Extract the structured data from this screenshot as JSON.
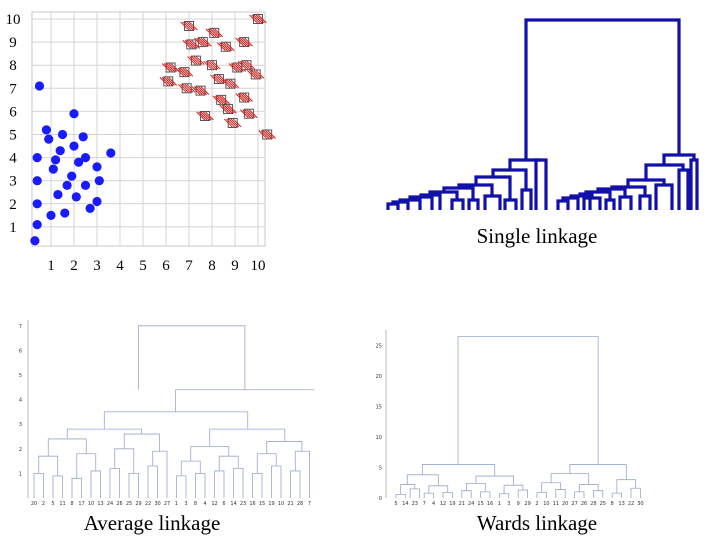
{
  "chart_data": [
    {
      "type": "scatter",
      "xticks": [
        "1",
        "2",
        "3",
        "4",
        "5",
        "6",
        "7",
        "8",
        "9",
        "10"
      ],
      "yticks": [
        "1",
        "2",
        "3",
        "4",
        "5",
        "6",
        "7",
        "8",
        "9",
        "10"
      ],
      "xlim": [
        0,
        10.5
      ],
      "ylim": [
        0,
        10
      ],
      "grid": true,
      "series": [
        {
          "marker": "filled-circle",
          "color": "#1a1aff",
          "points": [
            [
              0.3,
              0.4
            ],
            [
              0.4,
              1.1
            ],
            [
              0.4,
              2.0
            ],
            [
              0.4,
              3.0
            ],
            [
              0.4,
              4.0
            ],
            [
              0.5,
              7.1
            ],
            [
              0.8,
              5.2
            ],
            [
              0.9,
              4.8
            ],
            [
              1.1,
              3.5
            ],
            [
              1.0,
              1.5
            ],
            [
              1.2,
              3.9
            ],
            [
              1.3,
              2.4
            ],
            [
              1.4,
              4.3
            ],
            [
              1.5,
              5.0
            ],
            [
              1.6,
              1.6
            ],
            [
              1.7,
              2.8
            ],
            [
              1.9,
              3.2
            ],
            [
              2.0,
              4.5
            ],
            [
              2.0,
              5.9
            ],
            [
              2.1,
              2.3
            ],
            [
              2.2,
              3.8
            ],
            [
              2.4,
              4.9
            ],
            [
              2.5,
              4.0
            ],
            [
              2.5,
              2.8
            ],
            [
              2.7,
              1.8
            ],
            [
              3.0,
              3.6
            ],
            [
              3.0,
              2.1
            ],
            [
              3.1,
              3.0
            ],
            [
              3.6,
              4.2
            ]
          ]
        },
        {
          "marker": "hatched-square",
          "color": "#cc2222",
          "points": [
            [
              6.1,
              7.3
            ],
            [
              6.2,
              7.9
            ],
            [
              6.8,
              7.7
            ],
            [
              6.9,
              7.0
            ],
            [
              7.0,
              9.7
            ],
            [
              7.1,
              8.9
            ],
            [
              7.3,
              8.2
            ],
            [
              7.5,
              6.9
            ],
            [
              7.6,
              9.0
            ],
            [
              7.7,
              5.8
            ],
            [
              8.0,
              8.0
            ],
            [
              8.1,
              9.4
            ],
            [
              8.3,
              7.4
            ],
            [
              8.4,
              6.5
            ],
            [
              8.6,
              8.8
            ],
            [
              8.7,
              6.1
            ],
            [
              8.8,
              7.2
            ],
            [
              8.9,
              5.5
            ],
            [
              9.1,
              7.9
            ],
            [
              9.4,
              9.0
            ],
            [
              9.5,
              8.0
            ],
            [
              9.4,
              6.6
            ],
            [
              9.6,
              5.9
            ],
            [
              10.0,
              10.0
            ],
            [
              9.9,
              7.6
            ],
            [
              10.4,
              5.0
            ]
          ]
        }
      ]
    },
    {
      "type": "dendrogram",
      "title": "Single linkage",
      "color": "#1111aa"
    },
    {
      "type": "dendrogram",
      "title": "Average linkage",
      "yticks": [
        "1",
        "2",
        "3",
        "4",
        "5",
        "6",
        "7"
      ],
      "leaf_labels": [
        "20",
        "2",
        "5",
        "11",
        "8",
        "17",
        "10",
        "13",
        "24",
        "26",
        "25",
        "29",
        "22",
        "30",
        "27",
        "1",
        "3",
        "8",
        "4",
        "12",
        "6",
        "14",
        "23",
        "16",
        "15",
        "19",
        "10",
        "21",
        "28",
        "7"
      ]
    },
    {
      "type": "dendrogram",
      "title": "Wards linkage",
      "yticks": [
        "0",
        "5",
        "10",
        "15",
        "20",
        "25"
      ],
      "leaf_labels": [
        "5",
        "14",
        "23",
        "7",
        "4",
        "12",
        "19",
        "21",
        "24",
        "15",
        "16",
        "1",
        "3",
        "9",
        "29",
        "2",
        "10",
        "11",
        "20",
        "27",
        "26",
        "28",
        "25",
        "8",
        "13",
        "22",
        "30"
      ]
    }
  ]
}
